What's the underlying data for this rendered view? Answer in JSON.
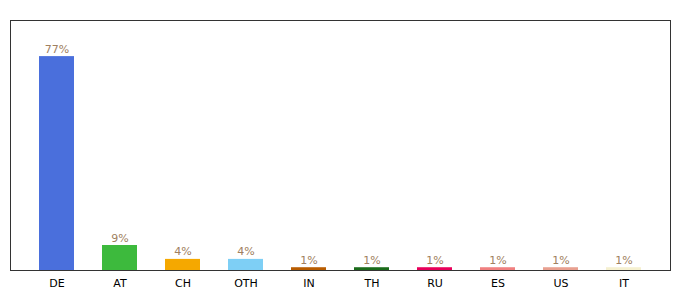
{
  "chart_data": {
    "type": "bar",
    "categories": [
      "DE",
      "AT",
      "CH",
      "OTH",
      "IN",
      "TH",
      "RU",
      "ES",
      "US",
      "IT"
    ],
    "values": [
      77,
      9,
      4,
      4,
      1,
      1,
      1,
      1,
      1,
      1
    ],
    "value_labels": [
      "77%",
      "9%",
      "4%",
      "4%",
      "1%",
      "1%",
      "1%",
      "1%",
      "1%",
      "1%"
    ],
    "colors": [
      "#4a6fdc",
      "#3dba3d",
      "#f5a800",
      "#7ecff5",
      "#b85c00",
      "#1a6b1a",
      "#e8005a",
      "#f08080",
      "#e8a090",
      "#f5f0d0"
    ],
    "ylim": [
      0,
      90
    ],
    "data_labels": true,
    "tick_labels": "x",
    "grid": false
  }
}
